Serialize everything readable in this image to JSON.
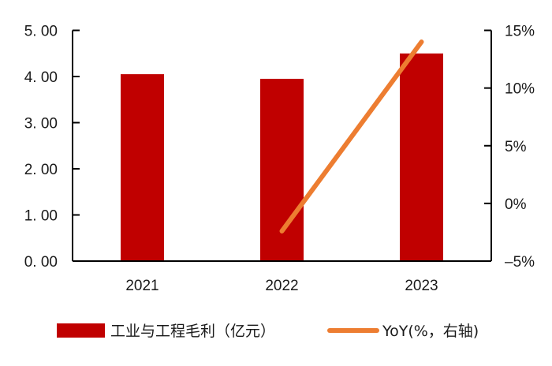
{
  "chart_data": {
    "type": "bar+line",
    "title": "",
    "categories": [
      "2021",
      "2022",
      "2023"
    ],
    "series": [
      {
        "name": "工业与工程毛利（亿元）",
        "type": "bar",
        "axis": "left",
        "color": "#C00000",
        "values": [
          4.05,
          3.95,
          4.5
        ]
      },
      {
        "name": "YoY(%，右轴)",
        "type": "line",
        "axis": "right",
        "color": "#ED7D31",
        "values": [
          null,
          -2.4,
          14.0
        ]
      }
    ],
    "left_axis": {
      "label": "",
      "ylim": [
        0,
        5
      ],
      "ticks": [
        "0. 00",
        "1. 00",
        "2. 00",
        "3. 00",
        "4. 00",
        "5. 00"
      ]
    },
    "right_axis": {
      "label": "",
      "ylim": [
        -5,
        15
      ],
      "ticks": [
        "-5%",
        "0%",
        "5%",
        "10%",
        "15%"
      ]
    },
    "xlabel": "",
    "grid": false,
    "legend_position": "bottom"
  },
  "legend": {
    "bar_label": "工业与工程毛利（亿元）",
    "line_label": "YoY(%，右轴)"
  }
}
